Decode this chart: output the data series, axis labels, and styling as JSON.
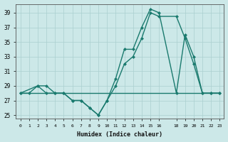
{
  "xlabel": "Humidex (Indice chaleur)",
  "bg_color": "#cce8e8",
  "grid_color": "#aacfcf",
  "line_color": "#1a7a6e",
  "series1_x": [
    0,
    1,
    2,
    3,
    4,
    5,
    6,
    7,
    8,
    9,
    10,
    11,
    12,
    13,
    14,
    15,
    16,
    18,
    19,
    20,
    21,
    22,
    23
  ],
  "series1_y": [
    28,
    28,
    29,
    29,
    28,
    28,
    27,
    27,
    26,
    25,
    27,
    30,
    34,
    34,
    37,
    39.5,
    39,
    28,
    36,
    33,
    28,
    28,
    28
  ],
  "series2_x": [
    0,
    2,
    3,
    4,
    5,
    6,
    7,
    8,
    9,
    10,
    11,
    12,
    13,
    14,
    15,
    16,
    18,
    19,
    20,
    21,
    22,
    23
  ],
  "series2_y": [
    28,
    29,
    28,
    28,
    28,
    27,
    27,
    26,
    25,
    27,
    29,
    32,
    33,
    35.5,
    39,
    38.5,
    38.5,
    35.5,
    32,
    28,
    28,
    28
  ],
  "series3_x": [
    0,
    23
  ],
  "series3_y": [
    28,
    28
  ],
  "xlim": [
    -0.5,
    23.5
  ],
  "ylim": [
    24.5,
    40.2
  ],
  "yticks": [
    25,
    27,
    29,
    31,
    33,
    35,
    37,
    39
  ],
  "xtick_labels": [
    "0",
    "1",
    "2",
    "3",
    "4",
    "5",
    "6",
    "7",
    "8",
    "9",
    "10",
    "11",
    "12",
    "13",
    "14",
    "15",
    "16",
    "18",
    "19",
    "20",
    "21",
    "22",
    "23"
  ],
  "xtick_pos": [
    0,
    1,
    2,
    3,
    4,
    5,
    6,
    7,
    8,
    9,
    10,
    11,
    12,
    13,
    14,
    15,
    16,
    18,
    19,
    20,
    21,
    22,
    23
  ]
}
